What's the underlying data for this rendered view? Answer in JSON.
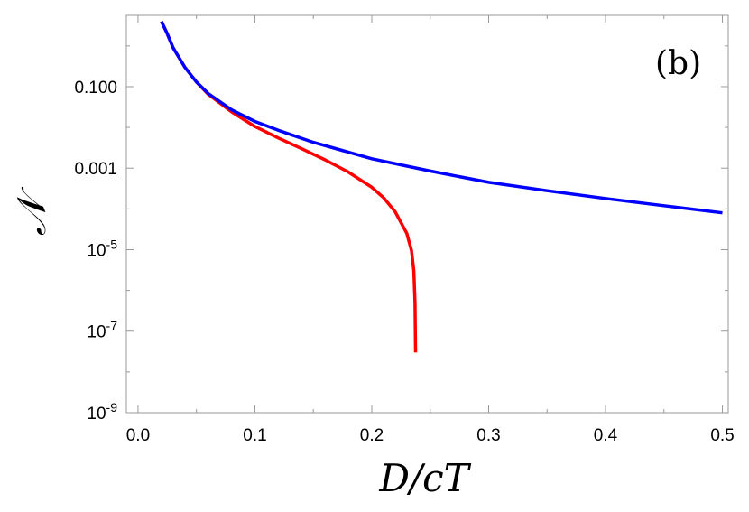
{
  "chart_data": {
    "type": "line",
    "panel_label": "(b)",
    "xlabel": "D/cT",
    "ylabel": "𝒩",
    "xlim": [
      -0.01,
      0.505
    ],
    "ylim_log10": [
      -9,
      0.75
    ],
    "y_scale": "log",
    "grid": false,
    "x_ticks": [
      {
        "value": 0.0,
        "label": "0.0"
      },
      {
        "value": 0.1,
        "label": "0.1"
      },
      {
        "value": 0.2,
        "label": "0.2"
      },
      {
        "value": 0.3,
        "label": "0.3"
      },
      {
        "value": 0.4,
        "label": "0.4"
      },
      {
        "value": 0.5,
        "label": "0.5"
      }
    ],
    "x_minor_ticks": [
      0.05,
      0.15,
      0.25,
      0.35,
      0.45
    ],
    "y_ticks": [
      {
        "exp": -1,
        "label": "0.100",
        "kind": "plain"
      },
      {
        "exp": -3,
        "label": "0.001",
        "kind": "plain"
      },
      {
        "exp": -5,
        "base": "10",
        "sup": "-5",
        "kind": "power"
      },
      {
        "exp": -7,
        "base": "10",
        "sup": "-7",
        "kind": "power"
      },
      {
        "exp": -9,
        "base": "10",
        "sup": "-9",
        "kind": "power"
      }
    ],
    "y_minor_ticks_exp": [
      0,
      -2,
      -4,
      -6,
      -8
    ],
    "series": [
      {
        "color": "#ff0000",
        "points": [
          [
            0.02,
            4.0
          ],
          [
            0.025,
            2.0
          ],
          [
            0.03,
            0.9
          ],
          [
            0.04,
            0.3
          ],
          [
            0.05,
            0.13
          ],
          [
            0.06,
            0.065
          ],
          [
            0.08,
            0.024
          ],
          [
            0.1,
            0.0105
          ],
          [
            0.12,
            0.0055
          ],
          [
            0.14,
            0.003
          ],
          [
            0.16,
            0.0016
          ],
          [
            0.18,
            0.0008
          ],
          [
            0.2,
            0.00034
          ],
          [
            0.21,
            0.00019
          ],
          [
            0.22,
            8.5e-05
          ],
          [
            0.23,
            2.5e-05
          ],
          [
            0.234,
            9.5e-06
          ],
          [
            0.236,
            3e-06
          ],
          [
            0.237,
            5e-07
          ],
          [
            0.2375,
            3e-08
          ]
        ]
      },
      {
        "color": "#0000ff",
        "points": [
          [
            0.02,
            4.0
          ],
          [
            0.025,
            2.0
          ],
          [
            0.03,
            0.9
          ],
          [
            0.04,
            0.3
          ],
          [
            0.05,
            0.13
          ],
          [
            0.06,
            0.068
          ],
          [
            0.08,
            0.027
          ],
          [
            0.1,
            0.014
          ],
          [
            0.12,
            0.0085
          ],
          [
            0.15,
            0.0043
          ],
          [
            0.2,
            0.0017
          ],
          [
            0.25,
            0.00085
          ],
          [
            0.3,
            0.00045
          ],
          [
            0.35,
            0.00028
          ],
          [
            0.4,
            0.00018
          ],
          [
            0.45,
            0.00012
          ],
          [
            0.5,
            8e-05
          ]
        ]
      }
    ]
  }
}
